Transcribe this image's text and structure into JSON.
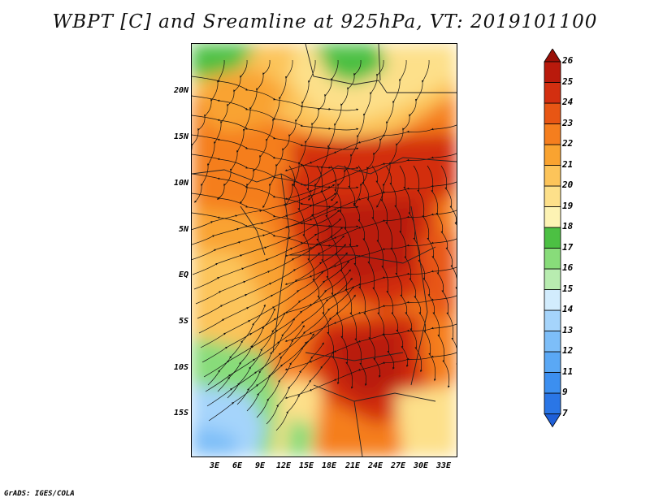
{
  "title": "WBPT [C] and Sreamline at 925hPa, VT: 2019101100",
  "credit": "GrADS: IGES/COLA",
  "map": {
    "lat_labels": [
      "20N",
      "15N",
      "10N",
      "5N",
      "EQ",
      "5S",
      "10S",
      "15S"
    ],
    "lon_labels": [
      "3E",
      "6E",
      "9E",
      "12E",
      "15E",
      "18E",
      "21E",
      "24E",
      "27E",
      "30E",
      "33E"
    ],
    "field": "wet-bulb potential temperature",
    "overlay": "streamlines"
  },
  "legend": {
    "levels": [
      "7",
      "9",
      "11",
      "12",
      "13",
      "14",
      "15",
      "16",
      "17",
      "18",
      "19",
      "20",
      "21",
      "22",
      "23",
      "24",
      "25",
      "26"
    ],
    "colors": [
      "#1e5fd8",
      "#2a76e6",
      "#3c8ff0",
      "#5aa8f5",
      "#7dbef8",
      "#a5d4fb",
      "#d2ecfd",
      "#b8ecb0",
      "#88dc7a",
      "#4cc043",
      "#fdf3b4",
      "#fde08a",
      "#fcc45a",
      "#f9a330",
      "#f57e1e",
      "#e85614",
      "#d32f10",
      "#b91a0c",
      "#991008"
    ]
  }
}
